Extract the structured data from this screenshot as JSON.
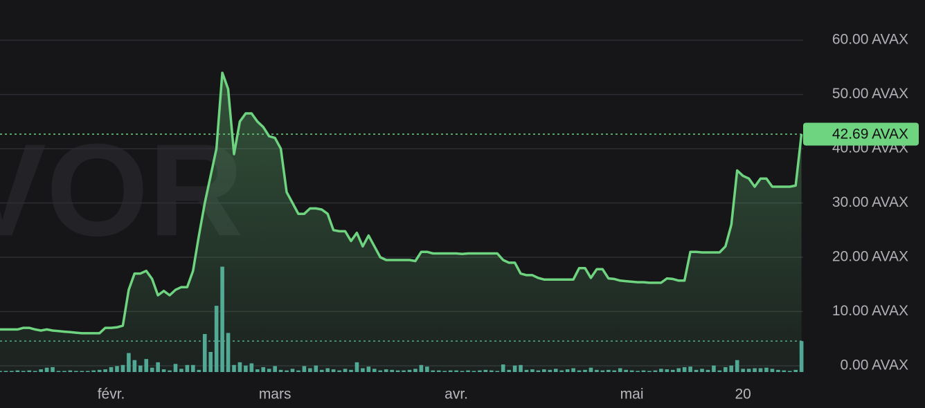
{
  "chart_data": {
    "type": "line",
    "watermark": "VOR",
    "current_label": "42.69 AVAX",
    "ylim": [
      -1.4,
      67.4
    ],
    "y2lim": [
      0,
      68.5
    ],
    "grid": true,
    "yticks": [
      {
        "value": 0,
        "label": "0.00 AVAX"
      },
      {
        "value": 10,
        "label": "10.00 AVAX"
      },
      {
        "value": 20,
        "label": "20.00 AVAX"
      },
      {
        "value": 30,
        "label": "30.00 AVAX"
      },
      {
        "value": 40,
        "label": "40.00 AVAX"
      },
      {
        "value": 50,
        "label": "50.00 AVAX"
      },
      {
        "value": 60,
        "label": "60.00 AVAX"
      }
    ],
    "categories": [
      null,
      null,
      null,
      null,
      null,
      null,
      null,
      null,
      null,
      null,
      null,
      null,
      null,
      null,
      null,
      null,
      null,
      null,
      null,
      "févr.",
      null,
      null,
      null,
      null,
      null,
      null,
      null,
      null,
      null,
      null,
      null,
      null,
      null,
      null,
      null,
      null,
      null,
      null,
      null,
      null,
      null,
      null,
      null,
      null,
      null,
      null,
      null,
      "mars",
      null,
      null,
      null,
      null,
      null,
      null,
      null,
      null,
      null,
      null,
      null,
      null,
      null,
      null,
      null,
      null,
      null,
      null,
      null,
      null,
      null,
      null,
      null,
      null,
      null,
      null,
      null,
      null,
      null,
      null,
      "avr.",
      null,
      null,
      null,
      null,
      null,
      null,
      null,
      null,
      null,
      null,
      null,
      null,
      null,
      null,
      null,
      null,
      null,
      null,
      null,
      null,
      null,
      null,
      null,
      null,
      null,
      null,
      null,
      null,
      null,
      "mai",
      null,
      null,
      null,
      null,
      null,
      null,
      null,
      null,
      null,
      null,
      null,
      null,
      null,
      null,
      null,
      null,
      null,
      null,
      "20",
      null,
      null,
      null,
      null,
      null,
      null,
      null,
      null,
      null,
      null
    ],
    "series": [
      {
        "type": "line",
        "color": "#6fd47f",
        "values": [
          6.7,
          6.7,
          6.7,
          6.7,
          7.0,
          7.0,
          6.7,
          6.5,
          6.7,
          6.5,
          6.4,
          6.3,
          6.2,
          6.1,
          6.0,
          6.0,
          6.0,
          6.0,
          7.0,
          7.0,
          7.1,
          7.4,
          14,
          17,
          17,
          17.5,
          16,
          13,
          13.8,
          13,
          14,
          14.5,
          14.5,
          17.5,
          24,
          30,
          35,
          40,
          54,
          51,
          39,
          45,
          46.5,
          46.5,
          45,
          44,
          42.3,
          42,
          40,
          32,
          30,
          28,
          28,
          29,
          29,
          28.8,
          28,
          25,
          24.8,
          24.8,
          23,
          24.5,
          22,
          24,
          22,
          20,
          19.5,
          19.5,
          19.5,
          19.5,
          19.5,
          19.3,
          21,
          21,
          20.7,
          20.7,
          20.7,
          20.7,
          20.7,
          20.6,
          20.7,
          20.7,
          20.7,
          20.7,
          20.7,
          20.7,
          19.5,
          19,
          19,
          17,
          16.7,
          16.7,
          16.2,
          15.9,
          15.9,
          15.9,
          15.9,
          15.9,
          15.9,
          18,
          18,
          16.2,
          17.8,
          17.8,
          16.1,
          16,
          15.7,
          15.6,
          15.5,
          15.4,
          15.4,
          15.3,
          15.3,
          15.3,
          16.1,
          16,
          15.7,
          15.7,
          21,
          21,
          20.9,
          20.9,
          20.9,
          20.9,
          22,
          26,
          36,
          35,
          34.5,
          33,
          34.5,
          34.5,
          33,
          33,
          33,
          33,
          33.2,
          42.69
        ]
      },
      {
        "type": "bar",
        "axis": "y2",
        "color": "#4fa596",
        "values": [
          0.2,
          0.2,
          0.2,
          0.3,
          0.2,
          0.3,
          0.2,
          0.5,
          0.8,
          0.9,
          0.2,
          0.2,
          0.3,
          0.2,
          0.2,
          0.2,
          0.3,
          0.4,
          0.5,
          0.9,
          1.1,
          1.3,
          3.5,
          2.2,
          1.2,
          2.4,
          0.8,
          1.8,
          0.5,
          0.3,
          1.5,
          0.6,
          1.3,
          1.3,
          0.4,
          7,
          3.7,
          12.2,
          19.4,
          7.2,
          1.3,
          1.8,
          1.2,
          1.6,
          0.5,
          0.9,
          0.6,
          1.1,
          0.4,
          0.3,
          0.6,
          0.3,
          1.1,
          0.7,
          1.2,
          0.4,
          0.7,
          0.5,
          0.3,
          0.6,
          0.4,
          1.8,
          0.7,
          1.0,
          0.6,
          0.3,
          0.5,
          0.4,
          0.3,
          0.3,
          0.4,
          0.6,
          1.3,
          1.0,
          0.3,
          0.3,
          0.2,
          0.3,
          0.3,
          0.2,
          0.3,
          0.2,
          0.3,
          0.4,
          0.3,
          0.2,
          1.4,
          0.4,
          1.2,
          1.3,
          0.4,
          0.5,
          0.3,
          0.5,
          0.4,
          0.6,
          0.3,
          0.5,
          0.7,
          0.3,
          0.4,
          0.8,
          0.4,
          0.3,
          0.4,
          0.3,
          0.7,
          0.4,
          0.3,
          0.2,
          0.3,
          0.2,
          0.3,
          0.6,
          0.5,
          0.4,
          0.7,
          0.9,
          1.0,
          0.4,
          0.6,
          0.4,
          1.2,
          0.3,
          0.9,
          1.2,
          2.2,
          0.6,
          0.6,
          0.7,
          0.7,
          0.8,
          0.6,
          0.4,
          0.3,
          0.2,
          0.4,
          5.7
        ]
      }
    ]
  }
}
